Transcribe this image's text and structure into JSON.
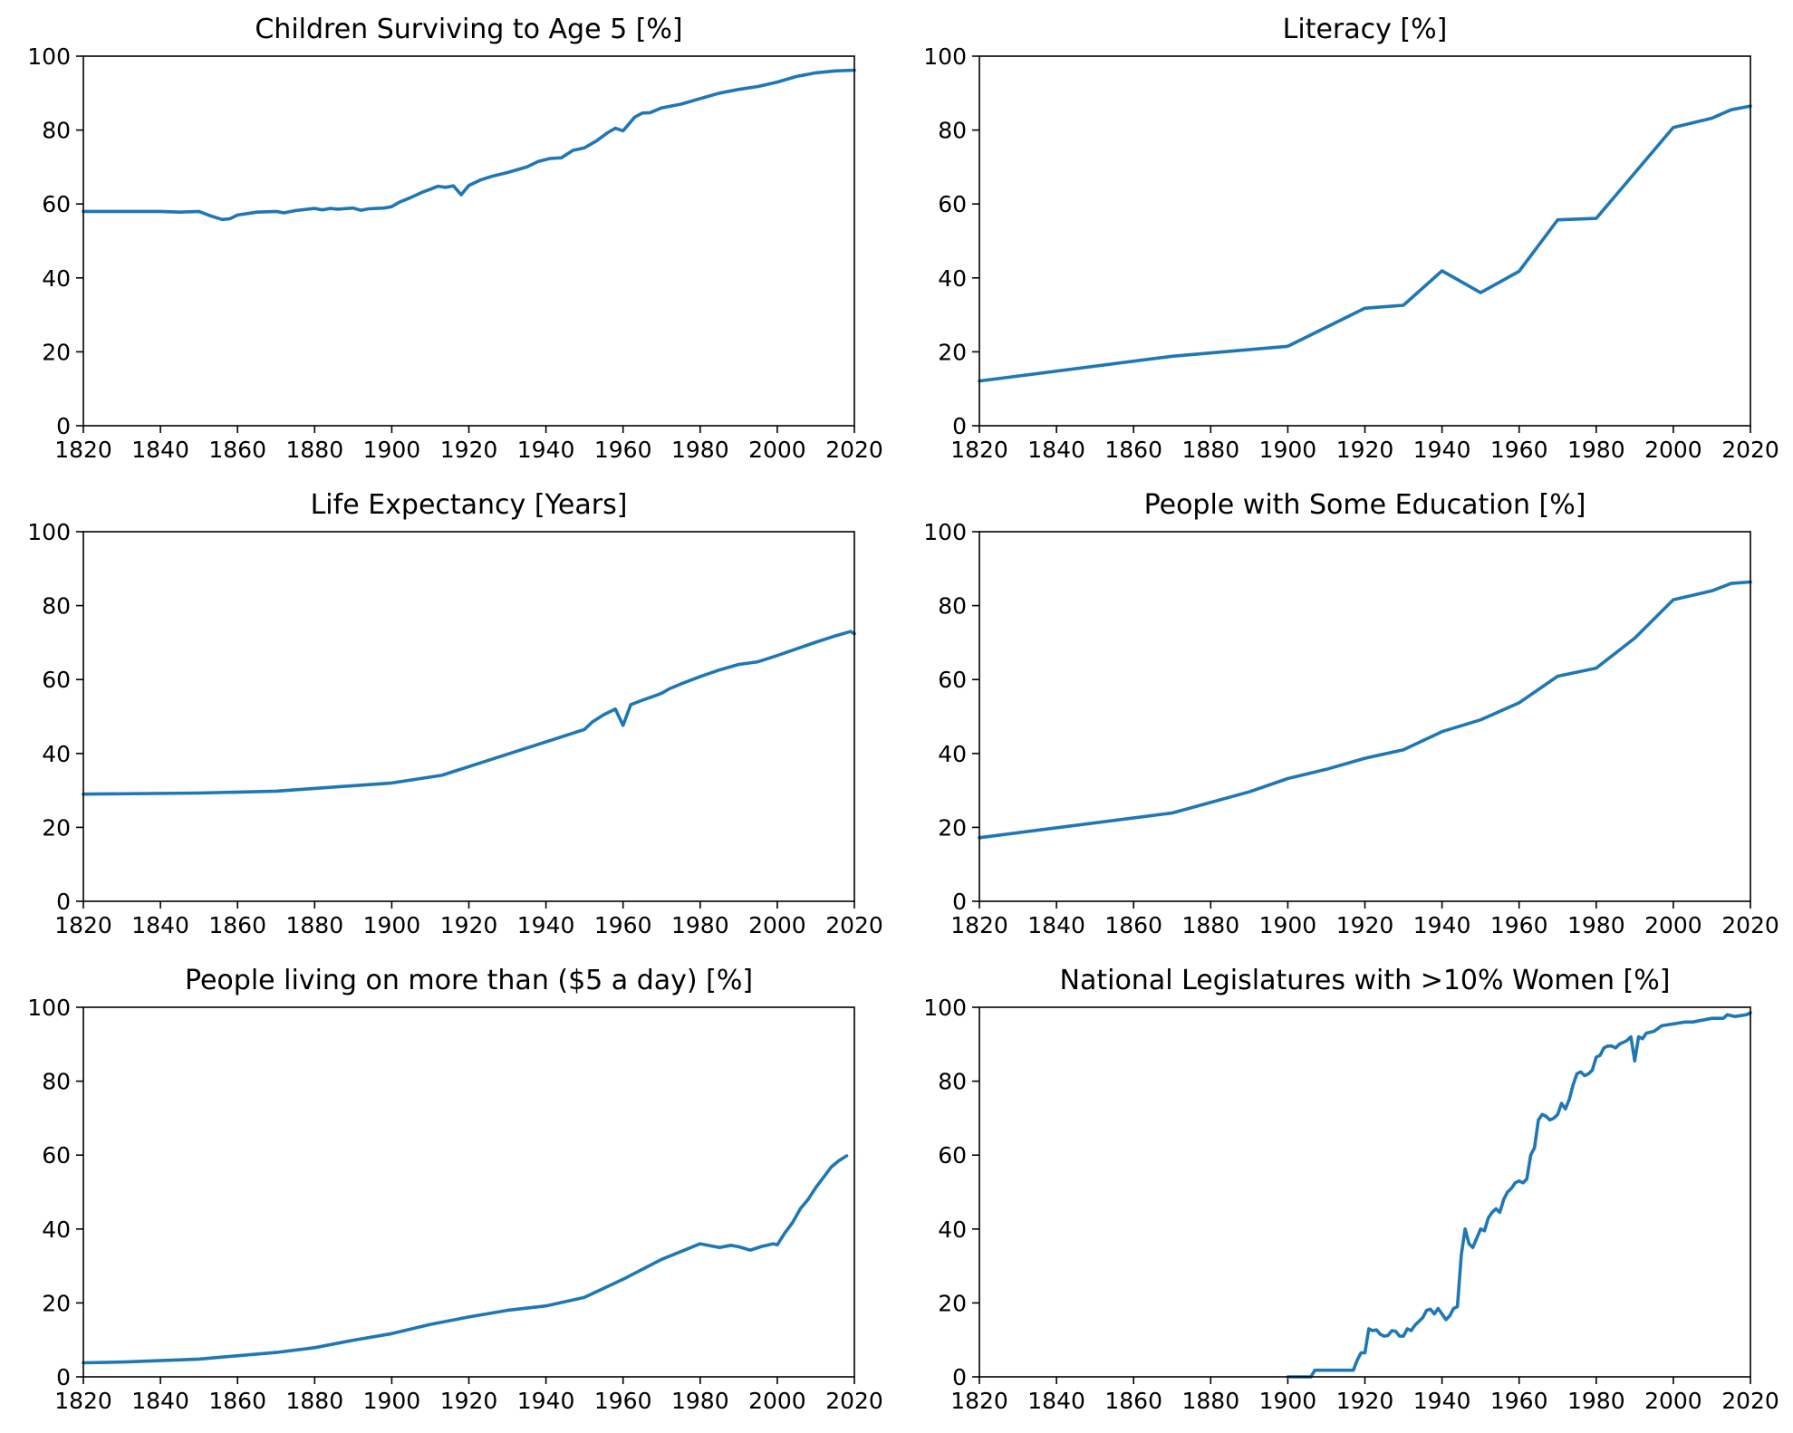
{
  "chart_data": [
    {
      "type": "line",
      "title": "Children Surviving to Age 5 [%]",
      "xlabel": "",
      "ylabel": "",
      "xlim": [
        1820,
        2020
      ],
      "ylim": [
        0,
        100
      ],
      "xticks": [
        1820,
        1840,
        1860,
        1880,
        1900,
        1920,
        1940,
        1960,
        1980,
        2000,
        2020
      ],
      "yticks": [
        0,
        20,
        40,
        60,
        80,
        100
      ],
      "grid": false,
      "line_color": "#1f77b4",
      "series": [
        {
          "x": [
            1820,
            1830,
            1840,
            1845,
            1850,
            1853,
            1856,
            1858,
            1860,
            1865,
            1870,
            1872,
            1875,
            1880,
            1882,
            1884,
            1886,
            1890,
            1892,
            1894,
            1896,
            1898,
            1900,
            1902,
            1905,
            1908,
            1910,
            1912,
            1914,
            1916,
            1918,
            1920,
            1923,
            1926,
            1930,
            1935,
            1938,
            1941,
            1944,
            1947,
            1950,
            1953,
            1956,
            1958,
            1960,
            1963,
            1965,
            1967,
            1970,
            1975,
            1980,
            1985,
            1990,
            1995,
            2000,
            2005,
            2010,
            2015,
            2020
          ],
          "y": [
            58,
            58,
            58,
            57.8,
            58,
            56.8,
            55.8,
            56,
            57,
            57.8,
            58,
            57.6,
            58.2,
            58.8,
            58.4,
            58.8,
            58.6,
            58.9,
            58.3,
            58.7,
            58.8,
            58.9,
            59.3,
            60.5,
            61.8,
            63.2,
            64,
            64.8,
            64.5,
            64.9,
            62.5,
            65,
            66.5,
            67.5,
            68.5,
            70,
            71.5,
            72.3,
            72.5,
            74.5,
            75.2,
            77,
            79.3,
            80.5,
            79.8,
            83.5,
            84.6,
            84.7,
            86,
            87,
            88.5,
            90,
            91,
            91.8,
            93,
            94.5,
            95.5,
            96,
            96.2
          ]
        }
      ]
    },
    {
      "type": "line",
      "title": "Literacy [%]",
      "xlabel": "",
      "ylabel": "",
      "xlim": [
        1820,
        2020
      ],
      "ylim": [
        0,
        100
      ],
      "xticks": [
        1820,
        1840,
        1860,
        1880,
        1900,
        1920,
        1940,
        1960,
        1980,
        2000,
        2020
      ],
      "yticks": [
        0,
        20,
        40,
        60,
        80,
        100
      ],
      "grid": false,
      "line_color": "#1f77b4",
      "series": [
        {
          "x": [
            1820,
            1870,
            1900,
            1920,
            1930,
            1940,
            1950,
            1960,
            1970,
            1980,
            2000,
            2010,
            2015,
            2020
          ],
          "y": [
            12.1,
            18.8,
            21.5,
            31.8,
            32.6,
            41.9,
            36,
            41.8,
            55.7,
            56.1,
            80.7,
            83.2,
            85.5,
            86.5
          ]
        }
      ]
    },
    {
      "type": "line",
      "title": "Life Expectancy [Years]",
      "xlabel": "",
      "ylabel": "",
      "xlim": [
        1820,
        2020
      ],
      "ylim": [
        0,
        100
      ],
      "xticks": [
        1820,
        1840,
        1860,
        1880,
        1900,
        1920,
        1940,
        1960,
        1980,
        2000,
        2020
      ],
      "yticks": [
        0,
        20,
        40,
        60,
        80,
        100
      ],
      "grid": false,
      "line_color": "#1f77b4",
      "series": [
        {
          "x": [
            1820,
            1850,
            1870,
            1900,
            1913,
            1950,
            1952,
            1955,
            1958,
            1960,
            1962,
            1965,
            1968,
            1970,
            1972,
            1975,
            1980,
            1985,
            1990,
            1995,
            2000,
            2005,
            2010,
            2015,
            2019,
            2020
          ],
          "y": [
            29,
            29.3,
            29.8,
            32,
            34.1,
            46.5,
            48.5,
            50.5,
            52,
            47.6,
            53.2,
            54.4,
            55.5,
            56.3,
            57.5,
            58.8,
            60.8,
            62.6,
            64.1,
            64.8,
            66.5,
            68.3,
            70.1,
            71.8,
            73,
            72.4
          ]
        }
      ]
    },
    {
      "type": "line",
      "title": "People with Some Education [%]",
      "xlabel": "",
      "ylabel": "",
      "xlim": [
        1820,
        2020
      ],
      "ylim": [
        0,
        100
      ],
      "xticks": [
        1820,
        1840,
        1860,
        1880,
        1900,
        1920,
        1940,
        1960,
        1980,
        2000,
        2020
      ],
      "yticks": [
        0,
        20,
        40,
        60,
        80,
        100
      ],
      "grid": false,
      "line_color": "#1f77b4",
      "series": [
        {
          "x": [
            1820,
            1870,
            1890,
            1900,
            1910,
            1920,
            1930,
            1940,
            1950,
            1960,
            1970,
            1980,
            1990,
            2000,
            2010,
            2015,
            2020
          ],
          "y": [
            17.2,
            23.9,
            29.6,
            33.2,
            35.7,
            38.7,
            41,
            45.9,
            49.1,
            53.7,
            60.9,
            63.1,
            71.2,
            81.6,
            84,
            86,
            86.4
          ]
        }
      ]
    },
    {
      "type": "line",
      "title": "People living on more than ($5 a day) [%]",
      "xlabel": "",
      "ylabel": "",
      "xlim": [
        1820,
        2020
      ],
      "ylim": [
        0,
        100
      ],
      "xticks": [
        1820,
        1840,
        1860,
        1880,
        1900,
        1920,
        1940,
        1960,
        1980,
        2000,
        2020
      ],
      "yticks": [
        0,
        20,
        40,
        60,
        80,
        100
      ],
      "grid": false,
      "line_color": "#1f77b4",
      "series": [
        {
          "x": [
            1820,
            1830,
            1850,
            1870,
            1880,
            1890,
            1900,
            1910,
            1920,
            1930,
            1940,
            1950,
            1960,
            1970,
            1980,
            1983,
            1985,
            1988,
            1990,
            1993,
            1996,
            1999,
            2000,
            2002,
            2004,
            2006,
            2008,
            2010,
            2012,
            2014,
            2016,
            2018
          ],
          "y": [
            3.8,
            4,
            4.8,
            6.6,
            7.9,
            9.9,
            11.7,
            14.2,
            16.2,
            18,
            19.2,
            21.5,
            26.4,
            31.8,
            36,
            35.4,
            35,
            35.6,
            35.2,
            34.3,
            35.3,
            36,
            35.7,
            39,
            41.8,
            45.5,
            48,
            51.2,
            54,
            56.8,
            58.5,
            59.8
          ]
        }
      ]
    },
    {
      "type": "line",
      "title": "National Legislatures with >10% Women [%]",
      "xlabel": "",
      "ylabel": "",
      "xlim": [
        1820,
        2020
      ],
      "ylim": [
        0,
        100
      ],
      "xticks": [
        1820,
        1840,
        1860,
        1880,
        1900,
        1920,
        1940,
        1960,
        1980,
        2000,
        2020
      ],
      "yticks": [
        0,
        20,
        40,
        60,
        80,
        100
      ],
      "grid": false,
      "line_color": "#1f77b4",
      "series": [
        {
          "x": [
            1900,
            1906,
            1907,
            1912,
            1917,
            1918,
            1919,
            1920,
            1921,
            1922,
            1923,
            1924,
            1925,
            1926,
            1927,
            1928,
            1929,
            1930,
            1931,
            1932,
            1933,
            1934,
            1935,
            1936,
            1937,
            1938,
            1939,
            1940,
            1941,
            1942,
            1943,
            1944,
            1945,
            1946,
            1947,
            1948,
            1949,
            1950,
            1951,
            1952,
            1953,
            1954,
            1955,
            1956,
            1957,
            1958,
            1959,
            1960,
            1961,
            1962,
            1963,
            1964,
            1965,
            1966,
            1967,
            1968,
            1969,
            1970,
            1971,
            1972,
            1973,
            1974,
            1975,
            1976,
            1977,
            1978,
            1979,
            1980,
            1981,
            1982,
            1983,
            1984,
            1985,
            1986,
            1987,
            1988,
            1989,
            1990,
            1991,
            1992,
            1993,
            1995,
            1997,
            2000,
            2003,
            2005,
            2010,
            2013,
            2014,
            2016,
            2019,
            2020
          ],
          "y": [
            0,
            0,
            1.8,
            1.8,
            1.8,
            4.5,
            6.5,
            6.5,
            13,
            12.5,
            12.7,
            11.5,
            11,
            11.2,
            12.5,
            12.3,
            11,
            11,
            13,
            12.5,
            14,
            15,
            16,
            18,
            18.3,
            17,
            18.5,
            17,
            15.5,
            16.5,
            18.5,
            19,
            33,
            40,
            36,
            35,
            37.5,
            40,
            39.5,
            43,
            44.5,
            45.5,
            44.5,
            48,
            50,
            51,
            52.5,
            53,
            52.5,
            53.5,
            60,
            62,
            69.5,
            71,
            70.5,
            69.5,
            70,
            71,
            74,
            72.5,
            75,
            79,
            82,
            82.5,
            81.5,
            82,
            83,
            86.5,
            87,
            89,
            89.5,
            89.5,
            89,
            90,
            90.5,
            91,
            92,
            85.5,
            92,
            91.5,
            93,
            93.5,
            95,
            95.5,
            96,
            96,
            97,
            97,
            98,
            97.5,
            98,
            98.5
          ]
        }
      ]
    }
  ]
}
